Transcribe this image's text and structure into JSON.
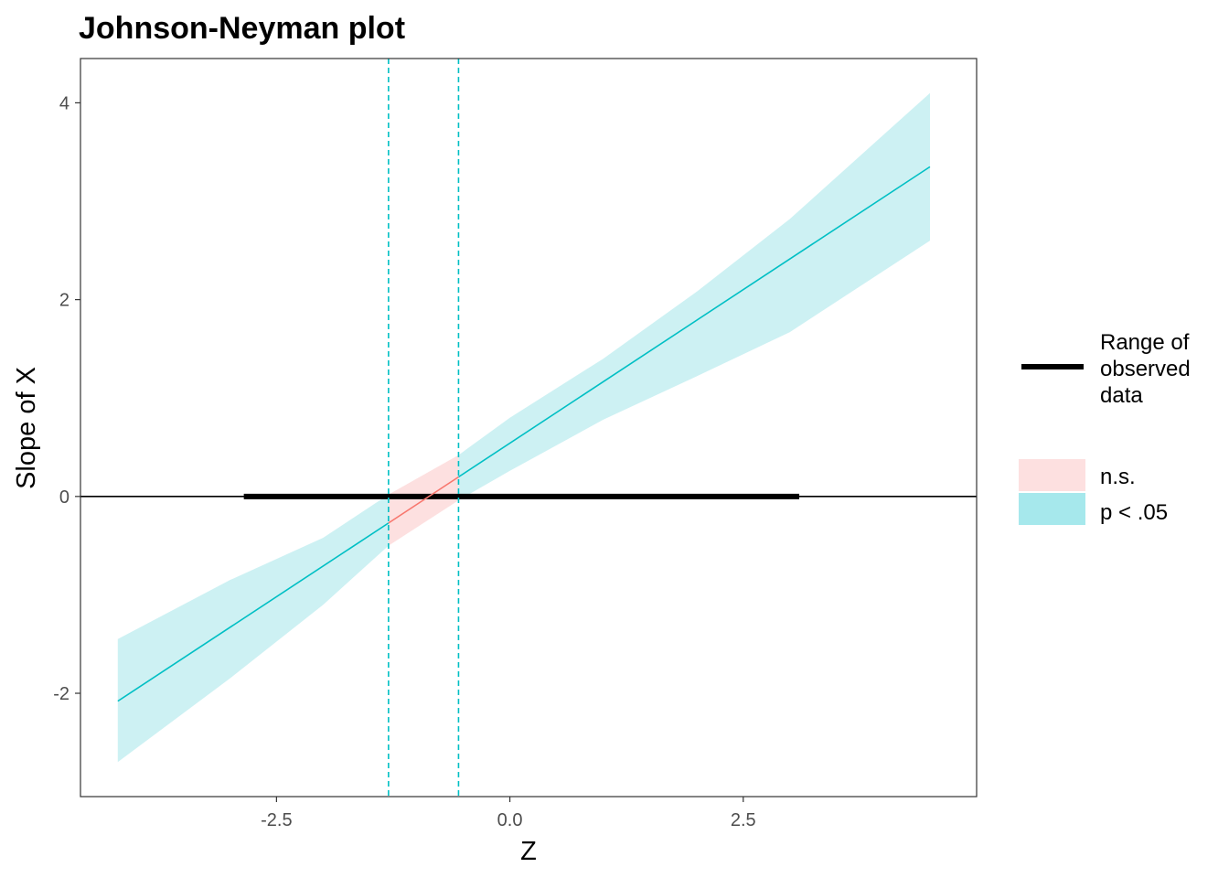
{
  "chart_data": {
    "type": "line",
    "title": "Johnson-Neyman plot",
    "xlabel": "Z",
    "ylabel": "Slope of X",
    "xlim": [
      -4.6,
      5.0
    ],
    "ylim": [
      -3.05,
      4.45
    ],
    "x_ticks": [
      -2.5,
      0.0,
      2.5
    ],
    "x_tick_labels": [
      "-2.5",
      "0.0",
      "2.5"
    ],
    "y_ticks": [
      -2,
      0,
      2,
      4
    ],
    "y_tick_labels": [
      "-2",
      "0",
      "2",
      "4"
    ],
    "grid": false,
    "legend_position": "right",
    "slope_line": {
      "x": [
        -4.2,
        4.5
      ],
      "y": [
        -2.08,
        3.35
      ]
    },
    "confidence_band": {
      "x": [
        -4.2,
        -3.0,
        -2.0,
        -1.3,
        -0.55,
        0.0,
        1.0,
        2.0,
        3.0,
        4.5
      ],
      "lower": [
        -2.7,
        -1.85,
        -1.1,
        -0.5,
        -0.04,
        0.26,
        0.78,
        1.22,
        1.67,
        2.6
      ],
      "upper": [
        -1.45,
        -0.85,
        -0.42,
        0.02,
        0.42,
        0.8,
        1.4,
        2.08,
        2.82,
        4.1
      ]
    },
    "johnson_neyman_bounds": [
      -1.3,
      -0.55
    ],
    "observed_range": [
      -2.85,
      3.1
    ],
    "colors": {
      "significant": "#00bfc4",
      "significant_fill": "#cdf1f3",
      "not_significant": "#f8766d",
      "not_significant_fill": "#fde0e0",
      "observed_range": "#000000"
    },
    "legend": {
      "range_label_lines": [
        "Range of",
        "observed",
        "data"
      ],
      "ns_label": "n.s.",
      "sig_label": "p < .05",
      "ns_swatch_color": "#fde0e0",
      "sig_swatch_color": "#a6e8ec"
    }
  }
}
